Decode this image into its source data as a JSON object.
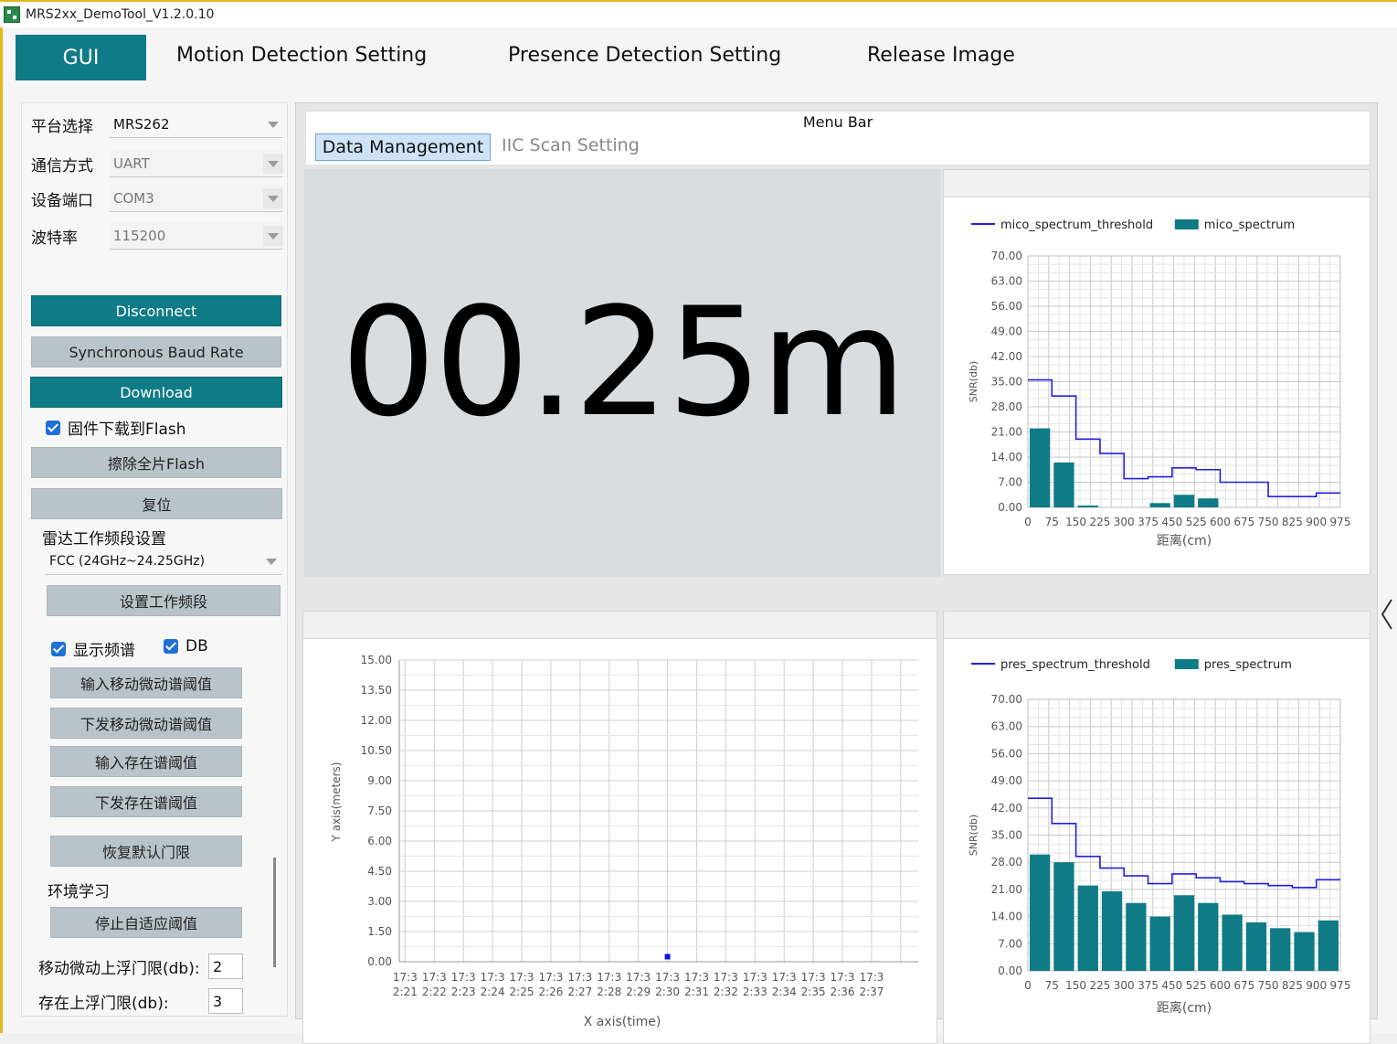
{
  "window": {
    "title": "MRS2xx_DemoTool_V1.2.0.10"
  },
  "topnav": {
    "gui": "GUI",
    "tabs": [
      "Motion Detection Setting",
      "Presence Detection Setting",
      "Release Image"
    ]
  },
  "left": {
    "platform": {
      "label": "平台选择",
      "value": "MRS262"
    },
    "comm": {
      "label": "通信方式",
      "value": "UART"
    },
    "port": {
      "label": "设备端口",
      "value": "COM3"
    },
    "baud": {
      "label": "波特率",
      "value": "115200"
    },
    "disconnect": "Disconnect",
    "sync_baud": "Synchronous Baud Rate",
    "download": "Download",
    "flash_check": "固件下载到Flash",
    "erase": "擦除全片Flash",
    "reset": "复位",
    "band_label": "雷达工作频段设置",
    "band_value": "FCC (24GHz~24.25GHz)",
    "set_band": "设置工作频段",
    "show_spectrum": "显示频谱",
    "db": "DB",
    "input_motion": "输入移动微动谱阈值",
    "send_motion": "下发移动微动谱阈值",
    "input_presence": "输入存在谱阈值",
    "send_presence": "下发存在谱阈值",
    "restore_default": "恢复默认门限",
    "env_learning": "环境学习",
    "stop_adaptive": "停止自适应阈值",
    "motion_float_label": "移动微动上浮门限(db):",
    "motion_float_value": "2",
    "presence_float_label": "存在上浮门限(db):",
    "presence_float_value": "3"
  },
  "main": {
    "menubar_title": "Menu Bar",
    "tab_data": "Data Management",
    "tab_iic": "IIC Scan Setting",
    "distance": "00.25m"
  },
  "colors": {
    "accent": "#0f7b86",
    "threshold_line": "#2020e0",
    "bar": "#0f7b86"
  },
  "chart_data": [
    {
      "type": "bar",
      "name_id": "mico",
      "legend": [
        "mico_spectrum_threshold",
        "mico_spectrum"
      ],
      "xlabel": "距离(cm)",
      "ylabel": "SNR(db)",
      "yticks": [
        "0.00",
        "7.00",
        "14.00",
        "21.00",
        "28.00",
        "35.00",
        "42.00",
        "49.00",
        "56.00",
        "63.00",
        "70.00"
      ],
      "xticks": [
        "0",
        "75",
        "150",
        "225",
        "300",
        "375",
        "450",
        "525",
        "600",
        "675",
        "750",
        "825",
        "900",
        "975"
      ],
      "ylim": [
        0,
        70
      ],
      "threshold": [
        35.5,
        31,
        19,
        15,
        8,
        8.5,
        11,
        10.5,
        7,
        7,
        3,
        3,
        4
      ],
      "values": [
        22,
        12.5,
        0.5,
        0,
        0,
        1.2,
        3.5,
        2.5,
        0,
        0,
        0,
        0,
        0
      ]
    },
    {
      "type": "scatter",
      "name_id": "trace",
      "xlabel": "X axis(time)",
      "ylabel": "Y axis(meters)",
      "yticks": [
        "0.00",
        "1.50",
        "3.00",
        "4.50",
        "6.00",
        "7.50",
        "9.00",
        "10.50",
        "12.00",
        "13.50",
        "15.00"
      ],
      "ylim": [
        0,
        15
      ],
      "xticks_top": [
        "17:3",
        "17:3",
        "17:3",
        "17:3",
        "17:3",
        "17:3",
        "17:3",
        "17:3",
        "17:3",
        "17:3",
        "17:3",
        "17:3",
        "17:3",
        "17:3",
        "17:3",
        "17:3",
        "17:3"
      ],
      "xticks_bottom": [
        "2:21",
        "2:22",
        "2:23",
        "2:24",
        "2:25",
        "2:26",
        "2:27",
        "2:28",
        "2:29",
        "2:30",
        "2:31",
        "2:32",
        "2:33",
        "2:34",
        "2:35",
        "2:36",
        "2:37"
      ],
      "points": [
        {
          "x": 9,
          "y": 0.25
        }
      ]
    },
    {
      "type": "bar",
      "name_id": "pres",
      "legend": [
        "pres_spectrum_threshold",
        "pres_spectrum"
      ],
      "xlabel": "距离(cm)",
      "ylabel": "SNR(db)",
      "yticks": [
        "0.00",
        "7.00",
        "14.00",
        "21.00",
        "28.00",
        "35.00",
        "42.00",
        "49.00",
        "56.00",
        "63.00",
        "70.00"
      ],
      "xticks": [
        "0",
        "75",
        "150",
        "225",
        "300",
        "375",
        "450",
        "525",
        "600",
        "675",
        "750",
        "825",
        "900",
        "975"
      ],
      "ylim": [
        0,
        70
      ],
      "threshold": [
        44.5,
        38,
        29.5,
        26.5,
        24.5,
        22.5,
        25,
        24,
        23,
        22.5,
        22,
        21.5,
        23.5
      ],
      "values": [
        30,
        28,
        22,
        20.5,
        17.5,
        14,
        19.5,
        17.5,
        14.5,
        12.5,
        11,
        10,
        13
      ]
    }
  ]
}
